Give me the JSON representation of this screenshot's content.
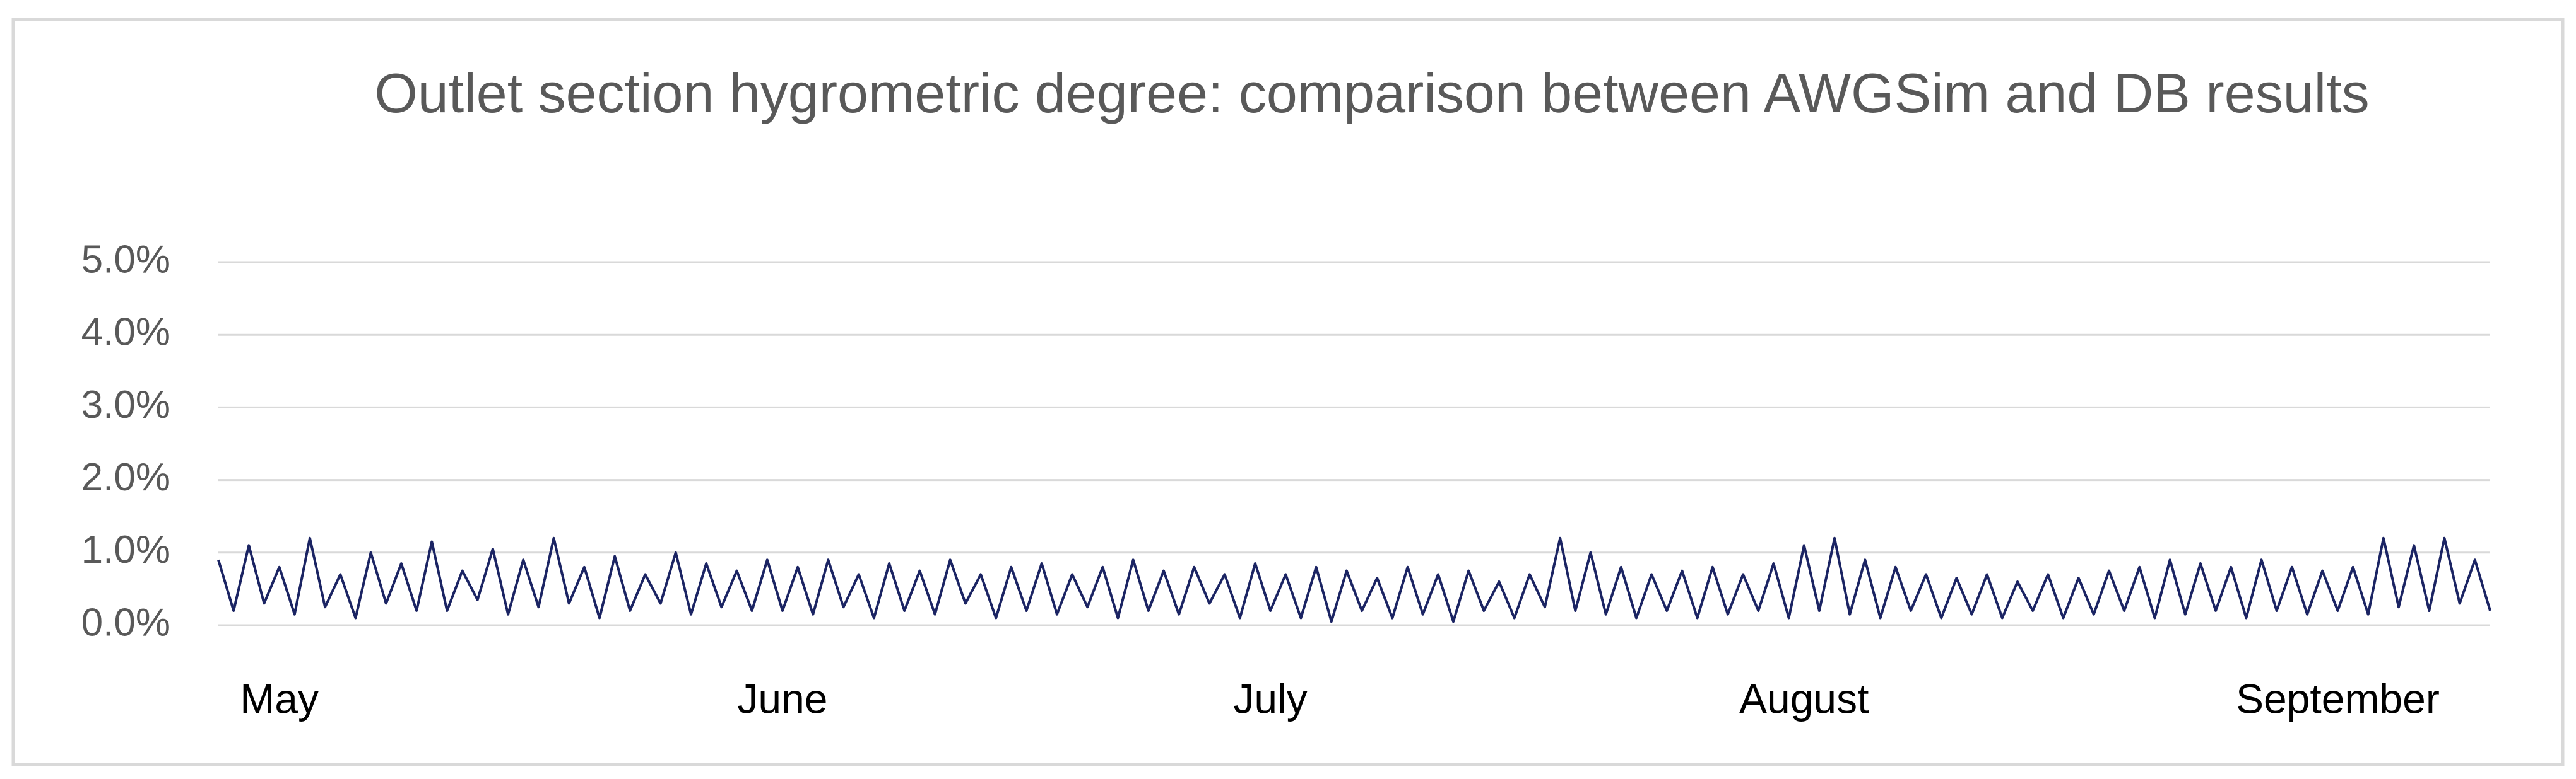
{
  "chart_data": {
    "type": "line",
    "title": "Outlet section hygrometric degree: comparison between AWGSim and DB results",
    "categories": [
      null,
      null,
      null,
      null,
      "May",
      null,
      null,
      null,
      null,
      null,
      null,
      null,
      null,
      null,
      null,
      null,
      null,
      null,
      null,
      null,
      null,
      null,
      null,
      null,
      null,
      null,
      null,
      null,
      null,
      null,
      null,
      null,
      null,
      null,
      null,
      null,
      null,
      "June",
      null,
      null,
      null,
      null,
      null,
      null,
      null,
      null,
      null,
      null,
      null,
      null,
      null,
      null,
      null,
      null,
      null,
      null,
      null,
      null,
      null,
      null,
      null,
      null,
      null,
      null,
      null,
      null,
      null,
      null,
      null,
      "July",
      null,
      null,
      null,
      null,
      null,
      null,
      null,
      null,
      null,
      null,
      null,
      null,
      null,
      null,
      null,
      null,
      null,
      null,
      null,
      null,
      null,
      null,
      null,
      null,
      null,
      null,
      null,
      null,
      null,
      null,
      null,
      null,
      null,
      null,
      "August",
      null,
      null,
      null,
      null,
      null,
      null,
      null,
      null,
      null,
      null,
      null,
      null,
      null,
      null,
      null,
      null,
      null,
      null,
      null,
      null,
      null,
      null,
      null,
      null,
      null,
      null,
      null,
      null,
      null,
      null,
      null,
      null,
      null,
      null,
      "September",
      null,
      null,
      null,
      null,
      null,
      null,
      null,
      null,
      null,
      null
    ],
    "series": [
      {
        "color": "#1b2463",
        "values": [
          0.9,
          0.2,
          1.1,
          0.3,
          0.8,
          0.15,
          1.2,
          0.25,
          0.7,
          0.1,
          1.0,
          0.3,
          0.85,
          0.2,
          1.15,
          0.2,
          0.75,
          0.35,
          1.05,
          0.15,
          0.9,
          0.25,
          1.2,
          0.3,
          0.8,
          0.1,
          0.95,
          0.2,
          0.7,
          0.3,
          1.0,
          0.15,
          0.85,
          0.25,
          0.75,
          0.2,
          0.9,
          0.2,
          0.8,
          0.15,
          0.9,
          0.25,
          0.7,
          0.1,
          0.85,
          0.2,
          0.75,
          0.15,
          0.9,
          0.3,
          0.7,
          0.1,
          0.8,
          0.2,
          0.85,
          0.15,
          0.7,
          0.25,
          0.8,
          0.1,
          0.9,
          0.2,
          0.75,
          0.15,
          0.8,
          0.3,
          0.7,
          0.1,
          0.85,
          0.2,
          0.7,
          0.1,
          0.8,
          0.05,
          0.75,
          0.2,
          0.65,
          0.1,
          0.8,
          0.15,
          0.7,
          0.05,
          0.75,
          0.2,
          0.6,
          0.1,
          0.7,
          0.25,
          1.2,
          0.2,
          1.0,
          0.15,
          0.8,
          0.1,
          0.7,
          0.2,
          0.75,
          0.1,
          0.8,
          0.15,
          0.7,
          0.2,
          0.85,
          0.1,
          1.1,
          0.2,
          1.2,
          0.15,
          0.9,
          0.1,
          0.8,
          0.2,
          0.7,
          0.1,
          0.65,
          0.15,
          0.7,
          0.1,
          0.6,
          0.2,
          0.7,
          0.1,
          0.65,
          0.15,
          0.75,
          0.2,
          0.8,
          0.1,
          0.9,
          0.15,
          0.85,
          0.2,
          0.8,
          0.1,
          0.9,
          0.2,
          0.8,
          0.15,
          0.75,
          0.2,
          0.8,
          0.15,
          1.2,
          0.25,
          1.1,
          0.2,
          1.2,
          0.3,
          0.9,
          0.2
        ]
      }
    ],
    "ylim": [
      0,
      5
    ],
    "yticks": [
      {
        "value": 0,
        "label": "0.0%"
      },
      {
        "value": 1,
        "label": "1.0%"
      },
      {
        "value": 2,
        "label": "2.0%"
      },
      {
        "value": 3,
        "label": "3.0%"
      },
      {
        "value": 4,
        "label": "4.0%"
      },
      {
        "value": 5,
        "label": "5.0%"
      }
    ],
    "grid": true
  }
}
